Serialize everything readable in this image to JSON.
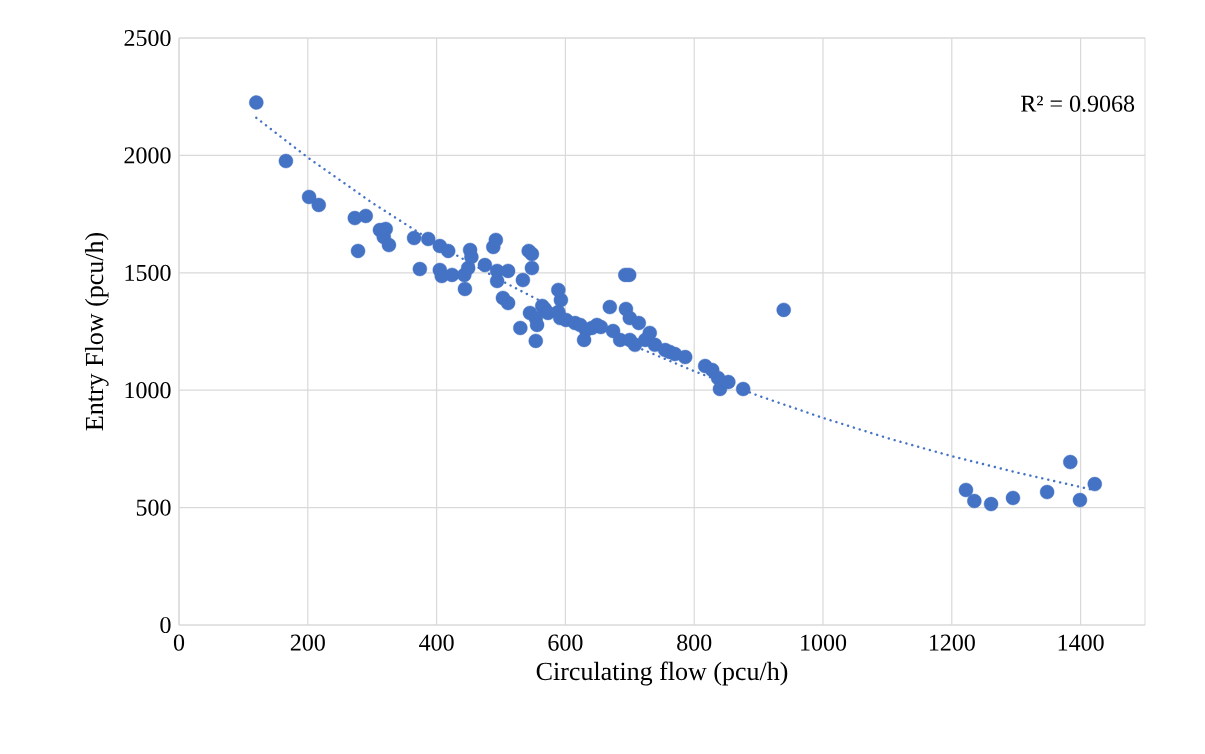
{
  "chart_data": {
    "type": "scatter",
    "xlabel": "Circulating flow (pcu/h)",
    "ylabel": "Entry Flow (pcu/h)",
    "annotations": [
      "R² = 0.9068"
    ],
    "xlim": [
      0,
      1500
    ],
    "ylim": [
      0,
      2500
    ],
    "xticks": [
      0,
      200,
      400,
      600,
      800,
      1000,
      1200,
      1400
    ],
    "yticks": [
      0,
      500,
      1000,
      1500,
      2000,
      2500
    ],
    "grid": true,
    "marker": "circle",
    "series": [
      {
        "color": "#4472c4",
        "x": [
          120,
          166,
          202,
          217,
          273,
          290,
          278,
          312,
          318,
          326,
          321,
          365,
          387,
          374,
          405,
          418,
          405,
          408,
          424,
          444,
          443,
          449,
          452,
          454,
          475,
          488,
          492,
          494,
          494,
          511,
          503,
          511,
          534,
          543,
          548,
          548,
          530,
          545,
          554,
          564,
          568,
          554,
          556,
          573,
          589,
          592,
          593,
          589,
          601,
          615,
          623,
          632,
          641,
          649,
          629,
          655,
          669,
          674,
          685,
          693,
          699,
          694,
          700,
          714,
          700,
          724,
          708,
          739,
          755,
          762,
          770,
          786,
          817,
          828,
          837,
          840,
          853,
          876,
          939,
          731,
          1222,
          1235,
          1261,
          1295,
          1348,
          1384,
          1399,
          1422
        ],
        "values": [
          2225,
          1976,
          1823,
          1789,
          1733,
          1742,
          1593,
          1682,
          1652,
          1618,
          1687,
          1648,
          1644,
          1516,
          1614,
          1593,
          1512,
          1486,
          1491,
          1431,
          1491,
          1520,
          1597,
          1567,
          1533,
          1610,
          1640,
          1508,
          1465,
          1508,
          1393,
          1371,
          1469,
          1593,
          1580,
          1520,
          1265,
          1329,
          1307,
          1359,
          1346,
          1210,
          1278,
          1329,
          1333,
          1307,
          1384,
          1427,
          1299,
          1286,
          1278,
          1256,
          1265,
          1278,
          1214,
          1269,
          1354,
          1252,
          1214,
          1491,
          1491,
          1346,
          1307,
          1286,
          1214,
          1214,
          1193,
          1193,
          1171,
          1163,
          1154,
          1141,
          1103,
          1086,
          1052,
          1005,
          1035,
          1005,
          1342,
          1244,
          575,
          528,
          515,
          541,
          566,
          694,
          532,
          600
        ]
      },
      {
        "type": "line",
        "color": "#4472c4",
        "line_style": "dotted",
        "marker": "none",
        "x": [
          120,
          200,
          300,
          400,
          500,
          600,
          700,
          800,
          900,
          1000,
          1100,
          1200,
          1300,
          1420
        ],
        "values": [
          2160,
          1991,
          1798,
          1623,
          1467,
          1325,
          1196,
          1081,
          976,
          882,
          796,
          719,
          650,
          575
        ]
      }
    ]
  }
}
